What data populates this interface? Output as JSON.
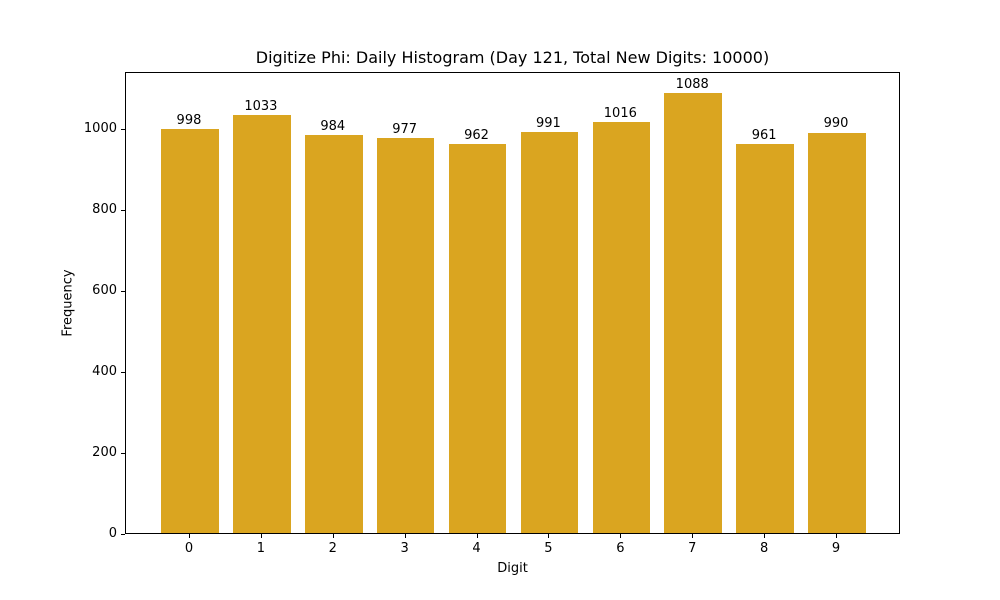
{
  "chart_data": {
    "type": "bar",
    "title": "Digitize Phi: Daily Histogram (Day 121, Total New Digits: 10000)",
    "xlabel": "Digit",
    "ylabel": "Frequency",
    "categories": [
      "0",
      "1",
      "2",
      "3",
      "4",
      "5",
      "6",
      "7",
      "8",
      "9"
    ],
    "values": [
      998,
      1033,
      984,
      977,
      962,
      991,
      1016,
      1088,
      961,
      990
    ],
    "ylim": [
      0,
      1142
    ],
    "yticks": [
      0,
      200,
      400,
      600,
      800,
      1000
    ],
    "bar_color": "#DAA520",
    "grid": false,
    "legend": null
  }
}
